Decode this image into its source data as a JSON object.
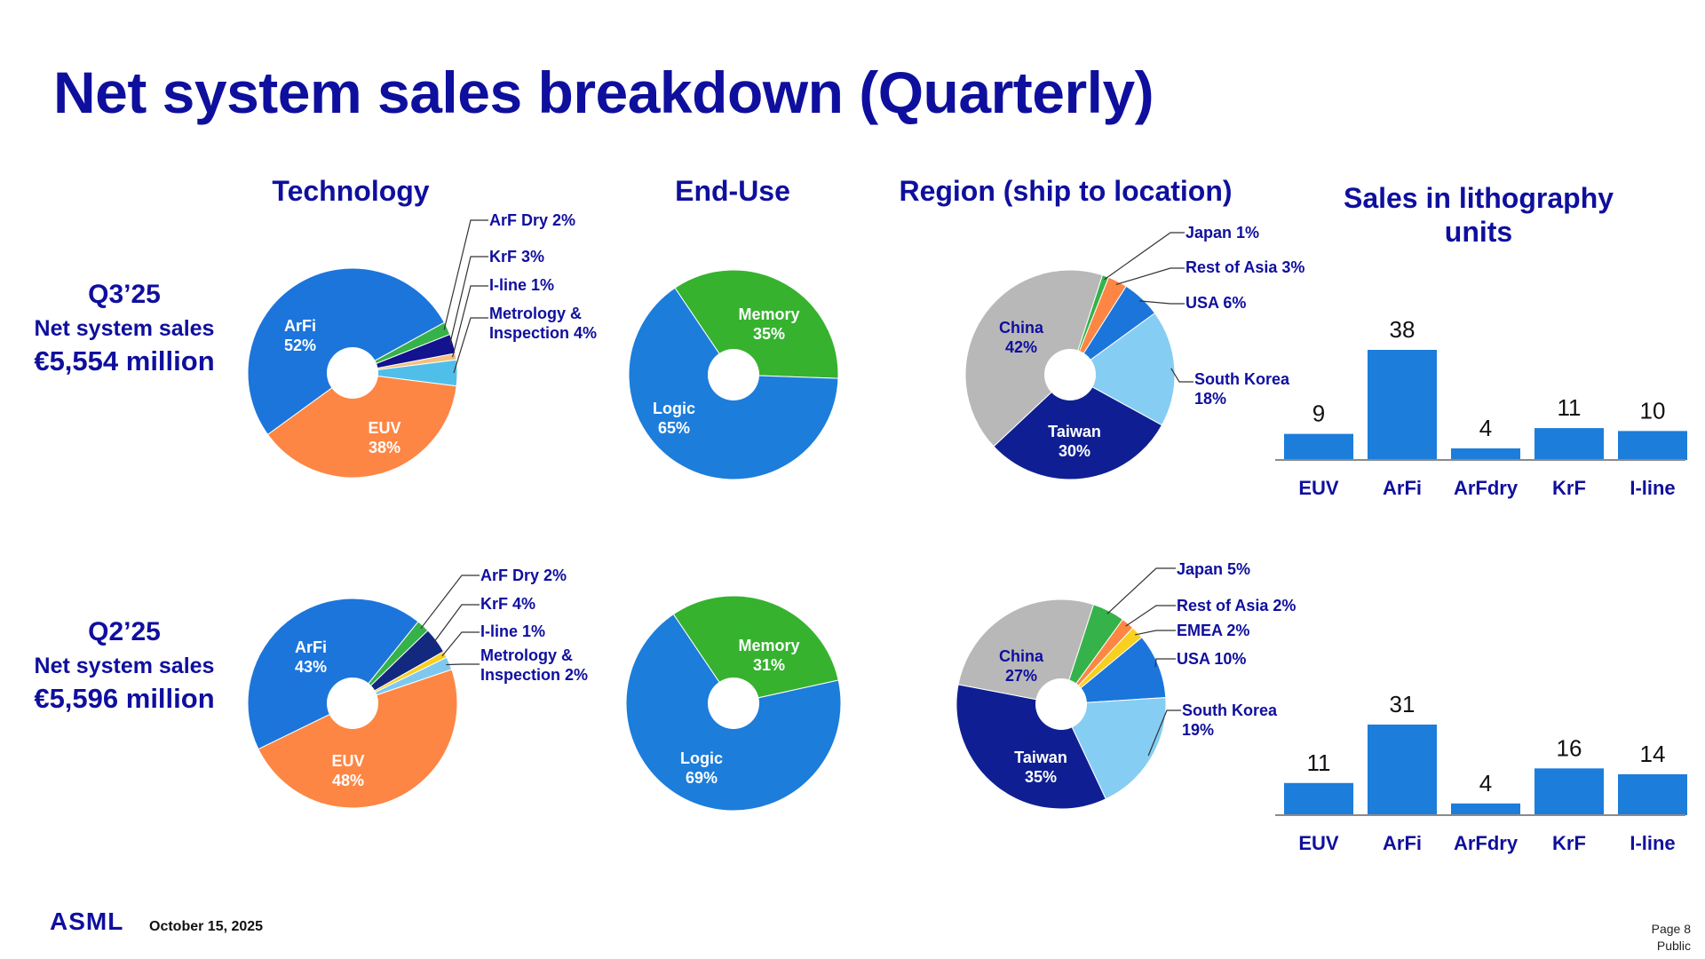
{
  "title": "Net system sales breakdown (Quarterly)",
  "headers": {
    "technology": "Technology",
    "end_use": "End-Use",
    "region": "Region (ship to location)",
    "litho_line1": "Sales in lithography",
    "litho_line2": "units"
  },
  "quarters": [
    {
      "label": "Q3’25",
      "subtitle": "Net system sales",
      "value": "€5,554 million"
    },
    {
      "label": "Q2’25",
      "subtitle": "Net system sales",
      "value": "€5,596 million"
    }
  ],
  "footer": {
    "logo": "ASML",
    "date": "October 15, 2025",
    "page": "Page 8",
    "classification": "Public"
  },
  "chart_data": [
    {
      "type": "pie",
      "id": "technology-q3",
      "slices": [
        {
          "label": "ArFi",
          "value": 52,
          "display": "52%",
          "color": "#1c75db"
        },
        {
          "label": "ArF Dry",
          "value": 2,
          "display": "2%",
          "color": "#36b24a"
        },
        {
          "label": "KrF",
          "value": 3,
          "display": "3%",
          "color": "#13128f"
        },
        {
          "label": "I-line",
          "value": 1,
          "display": "1%",
          "color": "#f4c07e"
        },
        {
          "label": "Metrology & Inspection",
          "value": 4,
          "display": "4%",
          "color": "#4fbfe9"
        },
        {
          "label": "EUV",
          "value": 38,
          "display": "38%",
          "color": "#fd8644"
        }
      ]
    },
    {
      "type": "pie",
      "id": "technology-q2",
      "slices": [
        {
          "label": "ArFi",
          "value": 43,
          "display": "43%",
          "color": "#1c75db"
        },
        {
          "label": "ArF Dry",
          "value": 2,
          "display": "2%",
          "color": "#36b24a"
        },
        {
          "label": "KrF",
          "value": 4,
          "display": "4%",
          "color": "#13297f"
        },
        {
          "label": "I-line",
          "value": 1,
          "display": "1%",
          "color": "#f9d01f"
        },
        {
          "label": "Metrology & Inspection",
          "value": 2,
          "display": "2%",
          "color": "#7ec8ef"
        },
        {
          "label": "EUV",
          "value": 48,
          "display": "48%",
          "color": "#fd8644"
        }
      ]
    },
    {
      "type": "pie",
      "id": "enduse-q3",
      "slices": [
        {
          "label": "Memory",
          "value": 35,
          "display": "35%",
          "color": "#36b22f"
        },
        {
          "label": "Logic",
          "value": 65,
          "display": "65%",
          "color": "#1c7ddb"
        }
      ]
    },
    {
      "type": "pie",
      "id": "enduse-q2",
      "slices": [
        {
          "label": "Memory",
          "value": 31,
          "display": "31%",
          "color": "#36b22f"
        },
        {
          "label": "Logic",
          "value": 69,
          "display": "69%",
          "color": "#1c7ddb"
        }
      ]
    },
    {
      "type": "pie",
      "id": "region-q3",
      "slices": [
        {
          "label": "Japan",
          "value": 1,
          "display": "1%",
          "color": "#36b24a"
        },
        {
          "label": "Rest of Asia",
          "value": 3,
          "display": "3%",
          "color": "#fd8644"
        },
        {
          "label": "USA",
          "value": 6,
          "display": "6%",
          "color": "#1c75db"
        },
        {
          "label": "South Korea",
          "value": 18,
          "display": "18%",
          "color": "#86cdf3"
        },
        {
          "label": "Taiwan",
          "value": 30,
          "display": "30%",
          "color": "#0f1f93"
        },
        {
          "label": "China",
          "value": 42,
          "display": "42%",
          "color": "#b8b8b8"
        }
      ]
    },
    {
      "type": "pie",
      "id": "region-q2",
      "slices": [
        {
          "label": "Japan",
          "value": 5,
          "display": "5%",
          "color": "#36b24a"
        },
        {
          "label": "Rest of Asia",
          "value": 2,
          "display": "2%",
          "color": "#fd8644"
        },
        {
          "label": "EMEA",
          "value": 2,
          "display": "2%",
          "color": "#f9d01f"
        },
        {
          "label": "USA",
          "value": 10,
          "display": "10%",
          "color": "#1c75db"
        },
        {
          "label": "South Korea",
          "value": 19,
          "display": "19%",
          "color": "#86cdf3"
        },
        {
          "label": "Taiwan",
          "value": 35,
          "display": "35%",
          "color": "#0f1f93"
        },
        {
          "label": "China",
          "value": 27,
          "display": "27%",
          "color": "#b8b8b8"
        }
      ]
    },
    {
      "type": "bar",
      "id": "litho-units-q3",
      "categories": [
        "EUV",
        "ArFi",
        "ArFdry",
        "KrF",
        "I-line"
      ],
      "values": [
        9,
        38,
        4,
        11,
        10
      ],
      "color": "#1c7ddb"
    },
    {
      "type": "bar",
      "id": "litho-units-q2",
      "categories": [
        "EUV",
        "ArFi",
        "ArFdry",
        "KrF",
        "I-line"
      ],
      "values": [
        11,
        31,
        4,
        16,
        14
      ],
      "color": "#1c7ddb"
    }
  ]
}
